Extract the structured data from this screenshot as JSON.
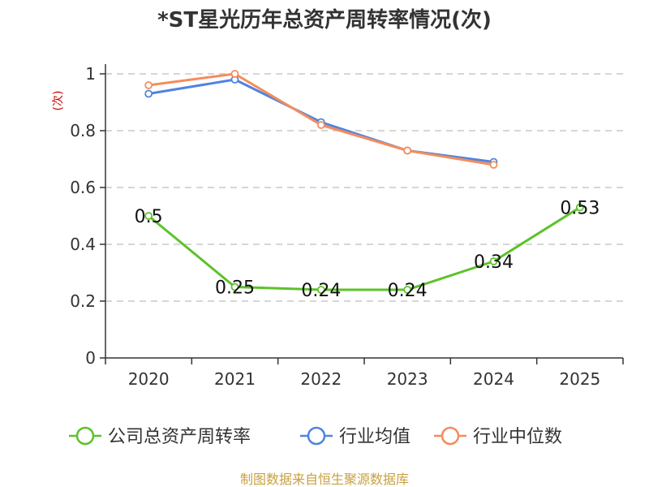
{
  "chart_data": {
    "type": "line",
    "title": "*ST星光历年总资产周转率情况(次)",
    "ylabel": "(次)",
    "xlabel": "",
    "categories": [
      "2020",
      "2021",
      "2022",
      "2023",
      "2024",
      "2025"
    ],
    "ylim": [
      0,
      1
    ],
    "yticks": [
      0,
      0.2,
      0.4,
      0.6,
      0.8,
      1
    ],
    "ytick_labels": [
      "0",
      "0.2",
      "0.4",
      "0.6",
      "0.8",
      "1"
    ],
    "grid": true,
    "legend_position": "bottom",
    "series": [
      {
        "name": "公司总资产周转率",
        "color": "#5cc22a",
        "values": [
          0.5,
          0.25,
          0.24,
          0.24,
          0.34,
          0.53
        ],
        "data_labels": [
          "0.5",
          "0.25",
          "0.24",
          "0.24",
          "0.34",
          "0.53"
        ]
      },
      {
        "name": "行业均值",
        "color": "#4f84e0",
        "values": [
          0.93,
          0.98,
          0.83,
          0.73,
          0.69,
          null
        ]
      },
      {
        "name": "行业中位数",
        "color": "#f58c5c",
        "values": [
          0.96,
          1.0,
          0.82,
          0.73,
          0.68,
          null
        ]
      }
    ],
    "source": "制图数据来自恒生聚源数据库"
  }
}
